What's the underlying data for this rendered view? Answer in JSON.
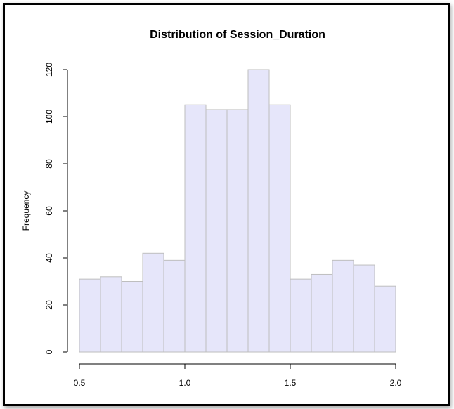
{
  "chart_data": {
    "type": "bar",
    "title": "Distribution of Session_Duration",
    "xlabel": "",
    "ylabel": "Frequency",
    "bins": [
      [
        0.5,
        0.6
      ],
      [
        0.6,
        0.7
      ],
      [
        0.7,
        0.8
      ],
      [
        0.8,
        0.9
      ],
      [
        0.9,
        1.0
      ],
      [
        1.0,
        1.1
      ],
      [
        1.1,
        1.2
      ],
      [
        1.2,
        1.3
      ],
      [
        1.3,
        1.4
      ],
      [
        1.4,
        1.5
      ],
      [
        1.5,
        1.6
      ],
      [
        1.6,
        1.7
      ],
      [
        1.7,
        1.8
      ],
      [
        1.8,
        1.9
      ],
      [
        1.9,
        2.0
      ]
    ],
    "values": [
      31,
      32,
      30,
      42,
      39,
      105,
      103,
      103,
      120,
      105,
      31,
      33,
      39,
      37,
      28
    ],
    "xlim": [
      0.5,
      2.0
    ],
    "ylim": [
      0,
      120
    ],
    "x_ticks": [
      0.5,
      1.0,
      1.5,
      2.0
    ],
    "x_tick_labels": [
      "0.5",
      "1.0",
      "1.5",
      "2.0"
    ],
    "y_ticks": [
      0,
      20,
      40,
      60,
      80,
      100,
      120
    ],
    "y_tick_labels": [
      "0",
      "20",
      "40",
      "60",
      "80",
      "100",
      "120"
    ],
    "grid": false,
    "bar_fill": "#e6e6fa",
    "bar_stroke": "#bebebe"
  }
}
